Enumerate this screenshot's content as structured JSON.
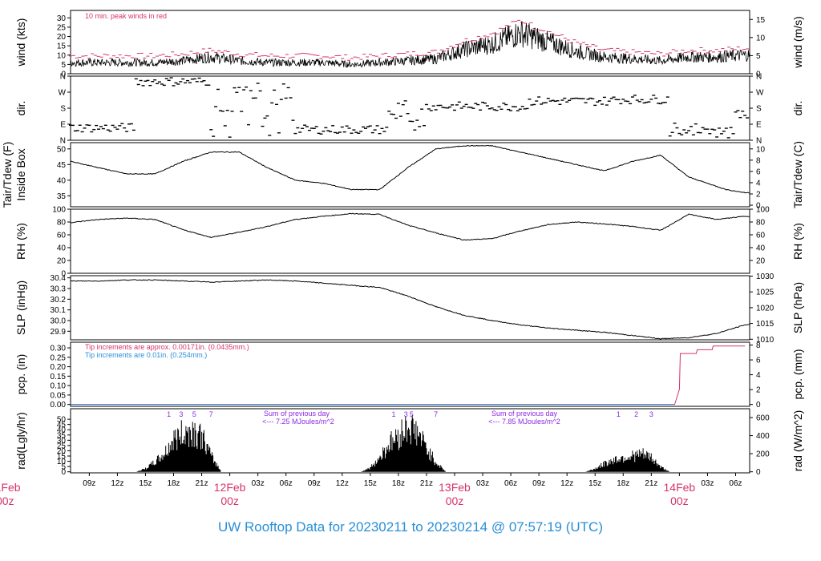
{
  "footer": {
    "title": "UW Rooftop Data for 20230211  to  20230214 @ 07:57:19  (UTC)"
  },
  "colors": {
    "accent_red": "#d6336c",
    "accent_blue": "#2a8fd6",
    "accent_purple": "#8a2be2",
    "series_black": "#000000"
  },
  "x_axis": {
    "hour_ticks": [
      "09z",
      "12z",
      "15z",
      "18z",
      "21z",
      "00z",
      "03z",
      "06z",
      "09z",
      "12z",
      "15z",
      "18z",
      "21z",
      "00z",
      "03z",
      "06z",
      "09z",
      "12z",
      "15z",
      "18z",
      "21z",
      "00z",
      "03z",
      "06z"
    ],
    "day_labels": [
      {
        "date": "11Feb",
        "hour": "00z"
      },
      {
        "date": "12Feb",
        "hour": "00z"
      },
      {
        "date": "13Feb",
        "hour": "00z"
      },
      {
        "date": "14Feb",
        "hour": "00z"
      }
    ]
  },
  "chart_data": [
    {
      "type": "line",
      "panel": "wind",
      "ylabel_left": "wind (kts)",
      "ylabel_right": "wind (m/s)",
      "yticks_left": [
        "0",
        "5",
        "10",
        "15",
        "20",
        "25",
        "30"
      ],
      "yticks_right": [
        "0",
        "5",
        "10",
        "15"
      ],
      "ylim": [
        0,
        34
      ],
      "annotation": "10 min. peak winds in red",
      "series": [
        {
          "color": "#000000",
          "x_hours": [
            7,
            10,
            13,
            16,
            19,
            22,
            25,
            28,
            31,
            34,
            37,
            40,
            43,
            46,
            49,
            52,
            55,
            58,
            61,
            64,
            67,
            70,
            73,
            76,
            79
          ],
          "values": [
            6,
            6,
            6,
            6,
            7,
            9,
            7,
            6,
            6,
            6,
            5,
            6,
            7,
            8,
            13,
            16,
            22,
            17,
            12,
            9,
            8,
            7,
            9,
            9,
            10
          ]
        },
        {
          "name": "10 min. peak winds",
          "color": "#d6336c",
          "x_hours": [
            7,
            10,
            13,
            16,
            19,
            22,
            25,
            28,
            31,
            34,
            37,
            40,
            43,
            46,
            49,
            52,
            55,
            58,
            61,
            64,
            67,
            70,
            73,
            76,
            79
          ],
          "values": [
            9,
            9,
            9,
            9,
            10,
            12,
            10,
            9,
            9,
            9,
            8,
            9,
            10,
            11,
            17,
            21,
            28,
            22,
            16,
            12,
            11,
            10,
            12,
            12,
            13
          ]
        }
      ]
    },
    {
      "type": "scatter",
      "panel": "dir",
      "ylabel_left": "dir.",
      "ylabel_right": "dir.",
      "yticks_left": [
        "N",
        "E",
        "S",
        "W",
        "N"
      ],
      "yticks_right": [
        "N",
        "E",
        "S",
        "W",
        "N"
      ],
      "ylim": [
        0,
        360
      ]
    },
    {
      "type": "line",
      "panel": "temperature",
      "ylabel_left": "Tair/Tdew (F)\nInside Box",
      "ylabel_right": "Tair/Tdew (C)",
      "yticks_left": [
        "35",
        "40",
        "45",
        "50"
      ],
      "yticks_right": [
        "0",
        "2",
        "4",
        "6",
        "8",
        "10"
      ],
      "ylim": [
        31.5,
        52
      ],
      "series": [
        {
          "color": "#000000",
          "x_hours": [
            7,
            10,
            13,
            16,
            19,
            22,
            25,
            28,
            31,
            34,
            37,
            40,
            43,
            46,
            49,
            52,
            55,
            58,
            61,
            64,
            67,
            70,
            73,
            76,
            77,
            79
          ],
          "values": [
            46,
            44,
            42,
            42,
            46,
            49,
            49,
            44,
            40,
            39,
            37,
            37,
            44,
            50,
            51,
            51,
            49,
            47,
            45,
            43,
            46,
            48,
            41,
            38,
            37,
            36
          ]
        }
      ]
    },
    {
      "type": "line",
      "panel": "rh",
      "ylabel_left": "RH (%)",
      "ylabel_right": "RH (%)",
      "yticks_left": [
        "0",
        "20",
        "40",
        "60",
        "80",
        "100"
      ],
      "yticks_right": [
        "20",
        "40",
        "60",
        "80",
        "100"
      ],
      "ylim": [
        0,
        100
      ],
      "series": [
        {
          "color": "#000000",
          "x_hours": [
            7,
            10,
            13,
            16,
            19,
            22,
            25,
            28,
            31,
            34,
            37,
            40,
            43,
            46,
            49,
            52,
            55,
            58,
            61,
            64,
            67,
            70,
            73,
            76,
            79
          ],
          "values": [
            79,
            84,
            86,
            84,
            68,
            56,
            64,
            73,
            84,
            89,
            93,
            92,
            75,
            63,
            52,
            54,
            66,
            76,
            80,
            77,
            73,
            67,
            92,
            84,
            89
          ]
        }
      ]
    },
    {
      "type": "line",
      "panel": "pressure",
      "ylabel_left": "SLP (inHg)",
      "ylabel_right": "SLP (hPa)",
      "yticks_left": [
        "29.9",
        "30.0",
        "30.1",
        "30.2",
        "30.3",
        "30.4"
      ],
      "yticks_right": [
        "1010",
        "1015",
        "1020",
        "1025",
        "1030"
      ],
      "ylim": [
        29.82,
        30.42
      ],
      "series": [
        {
          "color": "#000000",
          "x_hours": [
            7,
            10,
            13,
            16,
            19,
            22,
            25,
            28,
            31,
            34,
            37,
            40,
            43,
            46,
            49,
            52,
            55,
            58,
            61,
            64,
            67,
            70,
            73,
            76,
            79
          ],
          "values": [
            30.37,
            30.37,
            30.38,
            30.38,
            30.37,
            30.36,
            30.37,
            30.38,
            30.37,
            30.35,
            30.33,
            30.31,
            30.23,
            30.13,
            30.05,
            30.0,
            29.96,
            29.93,
            29.91,
            29.89,
            29.86,
            29.83,
            29.84,
            29.88,
            29.96
          ]
        }
      ]
    },
    {
      "type": "line",
      "panel": "precip",
      "ylabel_left": "pcp. (in)",
      "ylabel_right": "pcp. (mm)",
      "yticks_left": [
        "0.00",
        "0.05",
        "0.10",
        "0.15",
        "0.20",
        "0.25",
        "0.30"
      ],
      "yticks_right": [
        "0",
        "2",
        "4",
        "6",
        "8"
      ],
      "ylim": [
        -0.01,
        0.33
      ],
      "notes": [
        {
          "text": "Tip increments are approx. 0.00171in. (0.0435mm.)",
          "color": "#d6336c"
        },
        {
          "text": "Tip increments are 0.01in. (0.254mm.)",
          "color": "#2a8fd6"
        }
      ],
      "series": [
        {
          "color": "#d6336c",
          "x_hours": [
            7,
            71.5,
            72.0,
            72.1,
            73.8,
            73.9,
            75.5,
            75.6,
            79
          ],
          "values": [
            0,
            0,
            0.08,
            0.27,
            0.27,
            0.29,
            0.29,
            0.31,
            0.31
          ]
        }
      ]
    },
    {
      "type": "area",
      "panel": "radiation",
      "ylabel_left": "rad(Lgly/hr)",
      "ylabel_right": "rad (W/m^2)",
      "yticks_left": [
        "0",
        "5",
        "10",
        "15",
        "20",
        "25",
        "30",
        "35",
        "40",
        "45",
        "50"
      ],
      "yticks_right": [
        "0",
        "200",
        "400",
        "600"
      ],
      "ylim": [
        -1,
        60
      ],
      "annotations": [
        {
          "text": "Sum of previous day",
          "color": "#8a2be2"
        },
        {
          "text": "<--- 7.25 MJoules/m^2",
          "color": "#8a2be2"
        },
        {
          "text": "Sum of previous day",
          "color": "#8a2be2"
        },
        {
          "text": "<--- 7.85 MJoules/m^2",
          "color": "#8a2be2"
        }
      ],
      "hour_markers": [
        {
          "label": "1",
          "x_hours": 17.5
        },
        {
          "label": "3",
          "x_hours": 18.8
        },
        {
          "label": "5",
          "x_hours": 20.2
        },
        {
          "label": "7",
          "x_hours": 22.0
        },
        {
          "label": "1",
          "x_hours": 41.5
        },
        {
          "label": "3",
          "x_hours": 42.8
        },
        {
          "label": "5",
          "x_hours": 43.4
        },
        {
          "label": "7",
          "x_hours": 46.0
        },
        {
          "label": "1",
          "x_hours": 65.5
        },
        {
          "label": "2",
          "x_hours": 67.4
        },
        {
          "label": "3",
          "x_hours": 69.0
        }
      ],
      "series": [
        {
          "color": "#000000",
          "x_hours": [
            14,
            15,
            16,
            17,
            18,
            19,
            20,
            21,
            22,
            23,
            38,
            39,
            40,
            41,
            42,
            43,
            44,
            45,
            46,
            47,
            62,
            63,
            64,
            65,
            66,
            67,
            68,
            69,
            70,
            71
          ],
          "values": [
            0,
            4,
            12,
            22,
            40,
            48,
            52,
            45,
            20,
            2,
            0,
            5,
            18,
            35,
            45,
            58,
            50,
            30,
            12,
            1,
            0,
            4,
            10,
            15,
            18,
            20,
            22,
            18,
            6,
            0
          ]
        }
      ]
    }
  ]
}
